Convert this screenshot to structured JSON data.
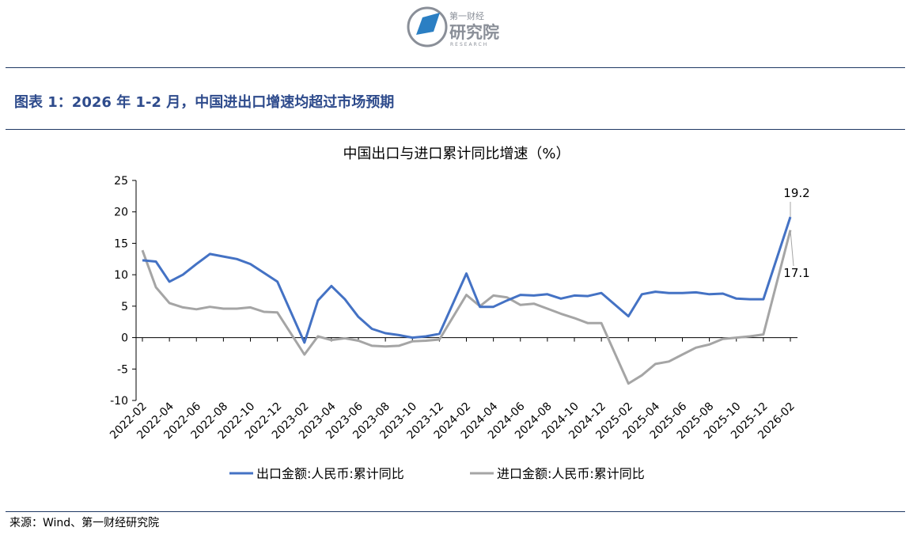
{
  "logo": {
    "top_text": "第一财经",
    "main_text": "研究院",
    "sub_text": "RESEARCH"
  },
  "figure_title": "图表 1：2026 年 1-2 月，中国进出口增速均超过市场预期",
  "source": "来源：Wind、第一财经研究院",
  "colors": {
    "export": "#4472c4",
    "import": "#a5a5a5",
    "title": "#2e4b8c",
    "rule": "#1f3864"
  },
  "chart_data": {
    "type": "line",
    "title": "中国出口与进口累计同比增速（%）",
    "xlabel": "",
    "ylabel": "",
    "ylim": [
      -10,
      25
    ],
    "yticks": [
      "25",
      "20",
      "15",
      "10",
      "5",
      "0",
      "-5",
      "-10"
    ],
    "xtick_labels": [
      "2022-02",
      "2022-04",
      "2022-06",
      "2022-08",
      "2022-10",
      "2022-12",
      "2023-02",
      "2023-04",
      "2023-06",
      "2023-08",
      "2023-10",
      "2023-12",
      "2024-02",
      "2024-04",
      "2024-06",
      "2024-08",
      "2024-10",
      "2024-12",
      "2025-02",
      "2025-04",
      "2025-06",
      "2025-08",
      "2025-10",
      "2025-12",
      "2026-02"
    ],
    "x": [
      "2022-02",
      "2022-03",
      "2022-04",
      "2022-05",
      "2022-06",
      "2022-07",
      "2022-08",
      "2022-09",
      "2022-10",
      "2022-11",
      "2022-12",
      "2023-02",
      "2023-03",
      "2023-04",
      "2023-05",
      "2023-06",
      "2023-07",
      "2023-08",
      "2023-09",
      "2023-10",
      "2023-11",
      "2023-12",
      "2024-02",
      "2024-03",
      "2024-04",
      "2024-05",
      "2024-06",
      "2024-07",
      "2024-08",
      "2024-09",
      "2024-10",
      "2024-11",
      "2024-12",
      "2025-02",
      "2025-03",
      "2025-04",
      "2025-05",
      "2025-06",
      "2025-07",
      "2025-08",
      "2025-09",
      "2025-10",
      "2025-11",
      "2025-12",
      "2026-02"
    ],
    "series": [
      {
        "name": "出口金额:人民币:累计同比",
        "color": "#4472c4",
        "values": [
          12.3,
          12.1,
          8.9,
          10.0,
          11.7,
          13.3,
          12.9,
          12.5,
          11.7,
          10.3,
          8.9,
          -0.8,
          5.9,
          8.2,
          6.1,
          3.3,
          1.4,
          0.7,
          0.4,
          0.0,
          0.2,
          0.6,
          10.2,
          4.9,
          4.9,
          5.9,
          6.8,
          6.7,
          6.9,
          6.2,
          6.7,
          6.6,
          7.1,
          3.4,
          6.9,
          7.3,
          7.1,
          7.1,
          7.2,
          6.9,
          7.0,
          6.2,
          6.1,
          6.1,
          19.2
        ]
      },
      {
        "name": "进口金额:人民币:累计同比",
        "color": "#a5a5a5",
        "values": [
          13.9,
          8.0,
          5.5,
          4.8,
          4.5,
          4.9,
          4.6,
          4.6,
          4.8,
          4.1,
          4.0,
          -2.7,
          0.2,
          -0.4,
          -0.1,
          -0.5,
          -1.3,
          -1.4,
          -1.3,
          -0.6,
          -0.5,
          -0.3,
          6.8,
          5.0,
          6.7,
          6.4,
          5.2,
          5.4,
          4.6,
          3.8,
          3.1,
          2.3,
          2.3,
          -7.3,
          -6.0,
          -4.2,
          -3.8,
          -2.7,
          -1.6,
          -1.1,
          -0.2,
          0.0,
          0.2,
          0.5,
          17.1
        ]
      }
    ],
    "annotations": [
      "19.2",
      "17.1"
    ],
    "legend_position": "bottom",
    "grid": false
  }
}
